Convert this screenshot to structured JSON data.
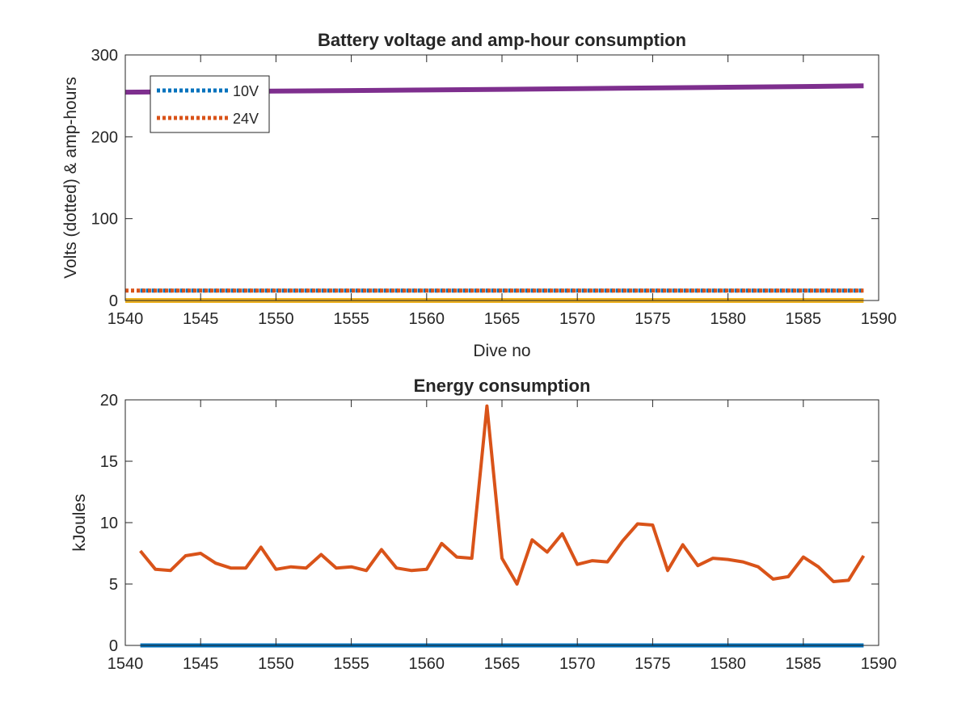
{
  "chart_data": [
    {
      "type": "line",
      "title": "Battery voltage and amp-hour consumption",
      "xlabel": "Dive no",
      "ylabel": "Volts (dotted) & amp-hours",
      "xlim": [
        1540,
        1590
      ],
      "ylim": [
        0,
        300
      ],
      "xticks": [
        1540,
        1545,
        1550,
        1555,
        1560,
        1565,
        1570,
        1575,
        1580,
        1585,
        1590
      ],
      "yticks": [
        0,
        100,
        200,
        300
      ],
      "grid": false,
      "legend_position": "top-left",
      "series": [
        {
          "name": "10V",
          "style": "dotted",
          "color": "#0072BD",
          "x": [
            1541,
            1589
          ],
          "values": [
            12,
            12
          ]
        },
        {
          "name": "24V",
          "style": "dotted",
          "color": "#D95319",
          "x": [
            1540,
            1589
          ],
          "values": [
            12,
            12
          ]
        },
        {
          "style": "solid",
          "color": "#EDB120",
          "x": [
            1540,
            1589
          ],
          "values": [
            0,
            0
          ]
        },
        {
          "style": "solid",
          "color": "#7E2F8E",
          "x": [
            1540,
            1545,
            1550,
            1555,
            1560,
            1565,
            1570,
            1575,
            1580,
            1585,
            1589
          ],
          "values": [
            254.5,
            255.2,
            255.8,
            256.5,
            257.2,
            258.0,
            258.8,
            259.6,
            260.5,
            261.4,
            262.2
          ]
        }
      ]
    },
    {
      "type": "line",
      "title": "Energy consumption",
      "xlabel": "",
      "ylabel": "kJoules",
      "xlim": [
        1540,
        1590
      ],
      "ylim": [
        0,
        20
      ],
      "xticks": [
        1540,
        1545,
        1550,
        1555,
        1560,
        1565,
        1570,
        1575,
        1580,
        1585,
        1590
      ],
      "yticks": [
        0,
        5,
        10,
        15,
        20
      ],
      "grid": false,
      "series": [
        {
          "style": "solid",
          "color": "#0072BD",
          "x": [
            1541,
            1589
          ],
          "values": [
            0,
            0
          ]
        },
        {
          "style": "solid",
          "color": "#D95319",
          "x": [
            1541,
            1542,
            1543,
            1544,
            1545,
            1546,
            1547,
            1548,
            1549,
            1550,
            1551,
            1552,
            1553,
            1554,
            1555,
            1556,
            1557,
            1558,
            1559,
            1560,
            1561,
            1562,
            1563,
            1564,
            1565,
            1566,
            1567,
            1568,
            1569,
            1570,
            1571,
            1572,
            1573,
            1574,
            1575,
            1576,
            1577,
            1578,
            1579,
            1580,
            1581,
            1582,
            1583,
            1584,
            1585,
            1586,
            1587,
            1588,
            1589
          ],
          "values": [
            7.7,
            6.2,
            6.1,
            7.3,
            7.5,
            6.7,
            6.3,
            6.3,
            8.0,
            6.2,
            6.4,
            6.3,
            7.4,
            6.3,
            6.4,
            6.1,
            7.8,
            6.3,
            6.1,
            6.2,
            8.3,
            7.2,
            7.1,
            19.5,
            7.1,
            5.0,
            8.6,
            7.6,
            9.1,
            6.6,
            6.9,
            6.8,
            8.5,
            9.9,
            9.8,
            6.1,
            8.2,
            6.5,
            7.1,
            7.0,
            6.8,
            6.4,
            5.4,
            5.6,
            7.2,
            6.4,
            5.2,
            5.3,
            7.3
          ]
        }
      ]
    }
  ]
}
